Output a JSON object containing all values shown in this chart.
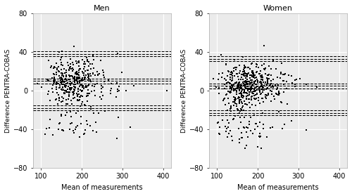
{
  "title_men": "Men",
  "title_women": "Women",
  "xlabel": "Mean of measurements",
  "ylabel": "Difference PENTRA-COBAS",
  "xlim": [
    80,
    420
  ],
  "ylim": [
    -80,
    80
  ],
  "xticks": [
    100,
    200,
    300,
    400
  ],
  "yticks": [
    -80,
    -40,
    0,
    40,
    80
  ],
  "bg_color": "#ebebeb",
  "grid_color": "#ffffff",
  "point_color": "black",
  "point_size": 3.0,
  "mean_bias_men": 10.0,
  "loa_upper_men": 38.0,
  "loa_lower_men": -18.0,
  "ci_half_men": 2.5,
  "mean_bias_women": 5.0,
  "loa_upper_women": 33.0,
  "loa_lower_women": -23.0,
  "ci_half_women": 2.5,
  "seed_men": 42,
  "seed_women": 123,
  "n_men": 380,
  "n_women": 480,
  "n_outlier_men": 48,
  "n_outlier_women": 60
}
